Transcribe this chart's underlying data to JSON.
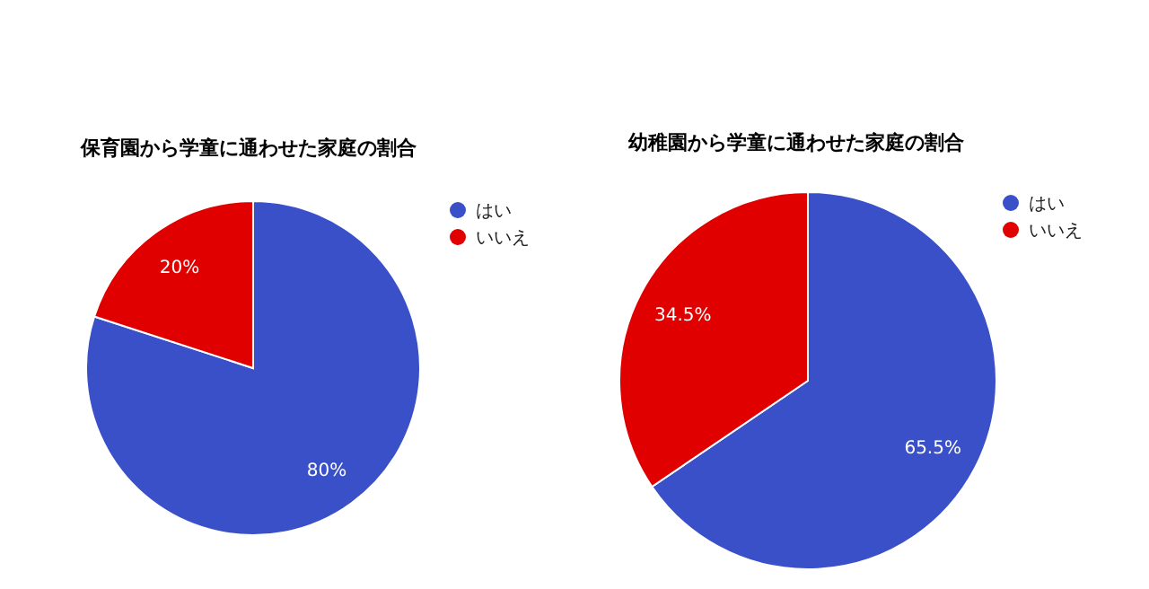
{
  "chart_data": [
    {
      "type": "pie",
      "title": "保育園から学童に通わせた家庭の割合",
      "categories": [
        "はい",
        "いいえ"
      ],
      "values": [
        80,
        20
      ],
      "colors": [
        "#3a50c8",
        "#e00000"
      ],
      "value_labels": [
        "80%",
        "20%"
      ],
      "legend": "right"
    },
    {
      "type": "pie",
      "title": "幼稚園から学童に通わせた家庭の割合",
      "categories": [
        "はい",
        "いいえ"
      ],
      "values": [
        65.5,
        34.5
      ],
      "colors": [
        "#3a50c8",
        "#e00000"
      ],
      "value_labels": [
        "65.5%",
        "34.5%"
      ],
      "legend": "right"
    }
  ]
}
